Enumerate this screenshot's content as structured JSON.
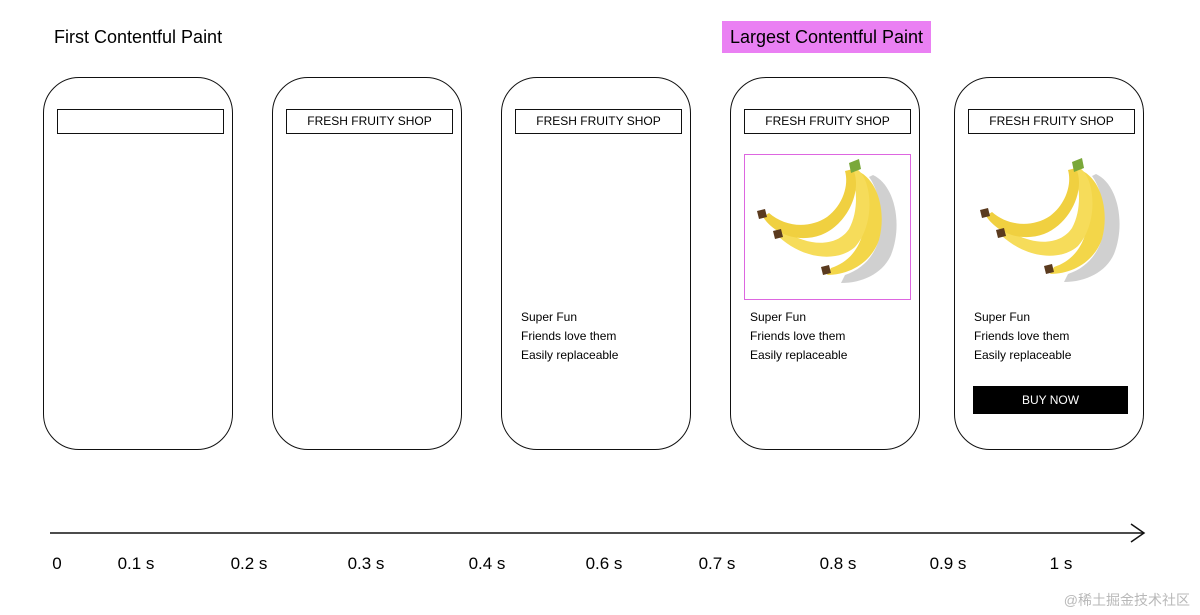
{
  "fcp_label": "First Contentful Paint",
  "lcp_label": "Largest Contentful Paint",
  "lcp_highlight_color": "#ea80f3",
  "phones": [
    {
      "header": "",
      "text_lines": []
    },
    {
      "header": "FRESH FRUITY SHOP",
      "text_lines": []
    },
    {
      "header": "FRESH FRUITY SHOP",
      "text_lines": [
        "Super Fun",
        "Friends love them",
        "Easily replaceable"
      ]
    },
    {
      "header": "FRESH FRUITY SHOP",
      "image": "banana-image",
      "highlighted": true,
      "text_lines": [
        "Super Fun",
        "Friends love them",
        "Easily replaceable"
      ]
    },
    {
      "header": "FRESH FRUITY SHOP",
      "image": "banana-image",
      "text_lines": [
        "Super Fun",
        "Friends love them",
        "Easily replaceable"
      ],
      "button": "BUY NOW"
    }
  ],
  "timeline": {
    "ticks": [
      "0",
      "0.1 s",
      "0.2 s",
      "0.3 s",
      "0.4 s",
      "0.6 s",
      "0.7 s",
      "0.8 s",
      "0.9 s",
      "1 s"
    ]
  },
  "watermark": "@稀土掘金技术社区"
}
